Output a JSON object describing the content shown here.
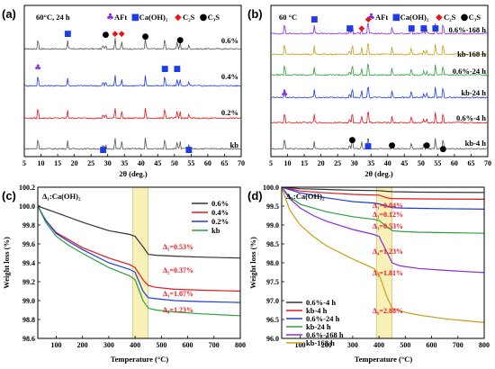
{
  "chart_data": [
    {
      "panel": "(a)",
      "type": "line",
      "condition": "60°C, 24 h",
      "xlabel": "2θ (deg.)",
      "xlim": [
        5,
        70
      ],
      "xticks": [
        5,
        10,
        15,
        20,
        25,
        30,
        35,
        40,
        45,
        50,
        55,
        60,
        65,
        70
      ],
      "series": [
        {
          "name": "0.6%",
          "color": "#555555"
        },
        {
          "name": "0.4%",
          "color": "#1e3ce6"
        },
        {
          "name": "0.2%",
          "color": "#e8161b"
        },
        {
          "name": "kb",
          "color": "#555555"
        }
      ],
      "legend": [
        {
          "symbol": "♣",
          "label": "AFt",
          "color": "#8a2be2"
        },
        {
          "symbol": "■",
          "label": "Ca(OH)₂",
          "color": "#1e3ce6"
        },
        {
          "symbol": "◆",
          "label": "C₂S",
          "color": "#e8161b"
        },
        {
          "symbol": "●",
          "label": "C₃S",
          "color": "#000000"
        }
      ],
      "peaks": {
        "AFt": [
          9.1
        ],
        "CaOH2": [
          18.0,
          28.6,
          47.1,
          50.8,
          54.3
        ],
        "C2S": [
          32.2,
          34.2
        ],
        "C3S": [
          29.4,
          41.3,
          51.7
        ]
      }
    },
    {
      "panel": "(b)",
      "type": "line",
      "condition": "60 °C",
      "xlabel": "2θ (deg.)",
      "xlim": [
        5,
        70
      ],
      "xticks": [
        5,
        10,
        15,
        20,
        25,
        30,
        35,
        40,
        45,
        50,
        55,
        60,
        65,
        70
      ],
      "series": [
        {
          "name": "0.6%-168 h",
          "color": "#8a2be2"
        },
        {
          "name": "kb-168 h",
          "color": "#c8a018"
        },
        {
          "name": "0.6%-24 h",
          "color": "#2e9e3e"
        },
        {
          "name": "kb-24 h",
          "color": "#1e3ce6"
        },
        {
          "name": "0.6%-4 h",
          "color": "#e8161b"
        },
        {
          "name": "kb-4 h",
          "color": "#555555"
        }
      ],
      "legend": [
        {
          "symbol": "♣",
          "label": "AFt",
          "color": "#8a2be2"
        },
        {
          "symbol": "■",
          "label": "Ca(OH)₂",
          "color": "#1e3ce6"
        },
        {
          "symbol": "◆",
          "label": "C₂S",
          "color": "#e8161b"
        },
        {
          "symbol": "●",
          "label": "C₃S",
          "color": "#000000"
        }
      ],
      "peaks": {
        "AFt": [
          9.1
        ],
        "CaOH2": [
          18.0,
          28.6,
          34.1,
          47.1,
          50.8,
          54.3
        ],
        "C2S": [
          32.2,
          34.2
        ],
        "C3S": [
          29.4,
          41.3,
          51.7,
          56.6
        ]
      }
    },
    {
      "panel": "(c)",
      "type": "line",
      "xlabel": "Temperature (°C)",
      "ylabel": "Weight loss (%)",
      "xlim": [
        30,
        800
      ],
      "ylim": [
        98.6,
        100.2
      ],
      "xticks": [
        100,
        200,
        300,
        400,
        500,
        600,
        700,
        800
      ],
      "yticks": [
        98.6,
        98.8,
        99.0,
        99.2,
        99.4,
        99.6,
        99.8,
        100.0,
        100.2
      ],
      "shaded_region": [
        390,
        450
      ],
      "legend_title": "Δ₁:Ca(OH)₂",
      "annotations": [
        "Δ₁=0.53%",
        "Δ₂=0.37%",
        "Δ₃=1.07%",
        "Δ₄=1.23%"
      ],
      "series": [
        {
          "name": "0.6%",
          "color": "#333333",
          "x": [
            30,
            100,
            200,
            300,
            380,
            400,
            430,
            450,
            480,
            550,
            650,
            800
          ],
          "y": [
            100.0,
            99.93,
            99.83,
            99.74,
            99.7,
            99.68,
            99.57,
            99.49,
            99.48,
            99.47,
            99.46,
            99.45
          ]
        },
        {
          "name": "0.4%",
          "color": "#e8161b",
          "x": [
            30,
            60,
            100,
            150,
            200,
            300,
            380,
            400,
            430,
            450,
            480,
            550,
            650,
            800
          ],
          "y": [
            100.0,
            99.85,
            99.72,
            99.64,
            99.56,
            99.45,
            99.38,
            99.35,
            99.22,
            99.16,
            99.14,
            99.12,
            99.11,
            99.1
          ]
        },
        {
          "name": "0.2%",
          "color": "#1e3ce6",
          "x": [
            30,
            60,
            100,
            150,
            200,
            300,
            380,
            400,
            430,
            450,
            480,
            550,
            650,
            800
          ],
          "y": [
            100.0,
            99.85,
            99.71,
            99.62,
            99.54,
            99.4,
            99.33,
            99.3,
            99.1,
            99.03,
            99.02,
            99.0,
            98.99,
            98.98
          ]
        },
        {
          "name": "kb",
          "color": "#2e9e3e",
          "x": [
            30,
            60,
            100,
            150,
            200,
            300,
            380,
            400,
            430,
            450,
            480,
            550,
            650,
            800
          ],
          "y": [
            100.0,
            99.83,
            99.68,
            99.58,
            99.5,
            99.35,
            99.26,
            99.22,
            99.0,
            98.92,
            98.9,
            98.88,
            98.86,
            98.84
          ]
        }
      ]
    },
    {
      "panel": "(d)",
      "type": "line",
      "xlabel": "Temperature (°C)",
      "ylabel": "Weight loss (%)",
      "xlim": [
        30,
        800
      ],
      "ylim": [
        96.0,
        100.0
      ],
      "xticks": [
        100,
        200,
        300,
        400,
        500,
        600,
        700,
        800
      ],
      "yticks": [
        96.0,
        96.5,
        97.0,
        97.5,
        98.0,
        98.5,
        99.0,
        99.5,
        100.0
      ],
      "shaded_region": [
        390,
        450
      ],
      "legend_title": "Δ₁:Ca(OH)₂",
      "annotations": [
        "Δ₁=0.04%",
        "Δ₂=0.12%",
        "Δ₃=0.53%",
        "Δ₄=1.23%",
        "Δ₅=1.81%",
        "Δ₆=2.88%"
      ],
      "series": [
        {
          "name": "0.6%-4 h",
          "color": "#333333",
          "x": [
            30,
            100,
            200,
            300,
            400,
            430,
            450,
            550,
            800
          ],
          "y": [
            100.0,
            99.96,
            99.94,
            99.92,
            99.91,
            99.89,
            99.88,
            99.87,
            99.86
          ]
        },
        {
          "name": "kb-4 h",
          "color": "#e8161b",
          "x": [
            30,
            100,
            200,
            300,
            400,
            430,
            450,
            550,
            800
          ],
          "y": [
            100.0,
            99.9,
            99.85,
            99.81,
            99.79,
            99.72,
            99.7,
            99.69,
            99.68
          ]
        },
        {
          "name": "0.6%-24 h",
          "color": "#1e3ce6",
          "x": [
            30,
            100,
            200,
            300,
            380,
            400,
            430,
            450,
            480,
            550,
            800
          ],
          "y": [
            100.0,
            99.85,
            99.72,
            99.62,
            99.58,
            99.56,
            99.5,
            99.46,
            99.45,
            99.44,
            99.42
          ]
        },
        {
          "name": "kb-24 h",
          "color": "#2e9e3e",
          "x": [
            30,
            60,
            100,
            200,
            300,
            380,
            400,
            430,
            450,
            480,
            550,
            800
          ],
          "y": [
            100.0,
            99.75,
            99.55,
            99.35,
            99.22,
            99.15,
            99.12,
            98.96,
            98.85,
            98.83,
            98.81,
            98.78
          ]
        },
        {
          "name": "0.6%-168 h",
          "color": "#8a2be2",
          "x": [
            30,
            60,
            100,
            150,
            200,
            300,
            380,
            400,
            430,
            450,
            480,
            550,
            650,
            800
          ],
          "y": [
            100.0,
            99.7,
            99.45,
            99.25,
            99.1,
            98.88,
            98.75,
            98.7,
            98.28,
            98.0,
            97.92,
            97.85,
            97.8,
            97.74
          ]
        },
        {
          "name": "kb-168 h",
          "color": "#c8a018",
          "x": [
            30,
            60,
            100,
            150,
            200,
            300,
            380,
            400,
            430,
            450,
            480,
            550,
            650,
            800
          ],
          "y": [
            100.0,
            99.4,
            99.0,
            98.7,
            98.45,
            98.1,
            97.85,
            97.7,
            97.1,
            96.8,
            96.72,
            96.62,
            96.52,
            96.42
          ]
        }
      ]
    }
  ]
}
